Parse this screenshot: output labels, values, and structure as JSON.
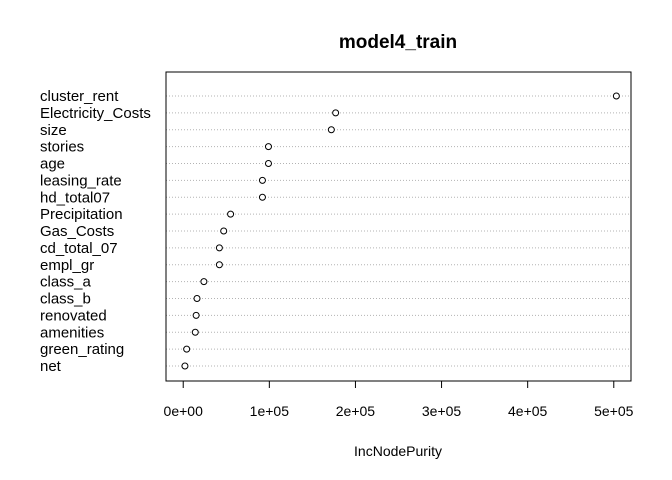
{
  "chart_data": {
    "type": "scatter",
    "title": "model4_train",
    "xlabel": "IncNodePurity",
    "ylabel": "",
    "xlim": [
      -20000,
      520000
    ],
    "xticks": [
      0,
      100000,
      200000,
      300000,
      400000,
      500000
    ],
    "xtick_labels": [
      "0e+00",
      "1e+05",
      "2e+05",
      "3e+05",
      "4e+05",
      "5e+05"
    ],
    "grid": "horizontal-dotted",
    "points": [
      {
        "label": "cluster_rent",
        "value": 503000
      },
      {
        "label": "Electricity_Costs",
        "value": 177000
      },
      {
        "label": "size",
        "value": 172000
      },
      {
        "label": "stories",
        "value": 99000
      },
      {
        "label": "age",
        "value": 99000
      },
      {
        "label": "leasing_rate",
        "value": 92000
      },
      {
        "label": "hd_total07",
        "value": 92000
      },
      {
        "label": "Precipitation",
        "value": 55000
      },
      {
        "label": "Gas_Costs",
        "value": 47000
      },
      {
        "label": "cd_total_07",
        "value": 42000
      },
      {
        "label": "empl_gr",
        "value": 42000
      },
      {
        "label": "class_a",
        "value": 24000
      },
      {
        "label": "class_b",
        "value": 16000
      },
      {
        "label": "renovated",
        "value": 15000
      },
      {
        "label": "amenities",
        "value": 14000
      },
      {
        "label": "green_rating",
        "value": 4000
      },
      {
        "label": "net",
        "value": 2000
      }
    ]
  }
}
